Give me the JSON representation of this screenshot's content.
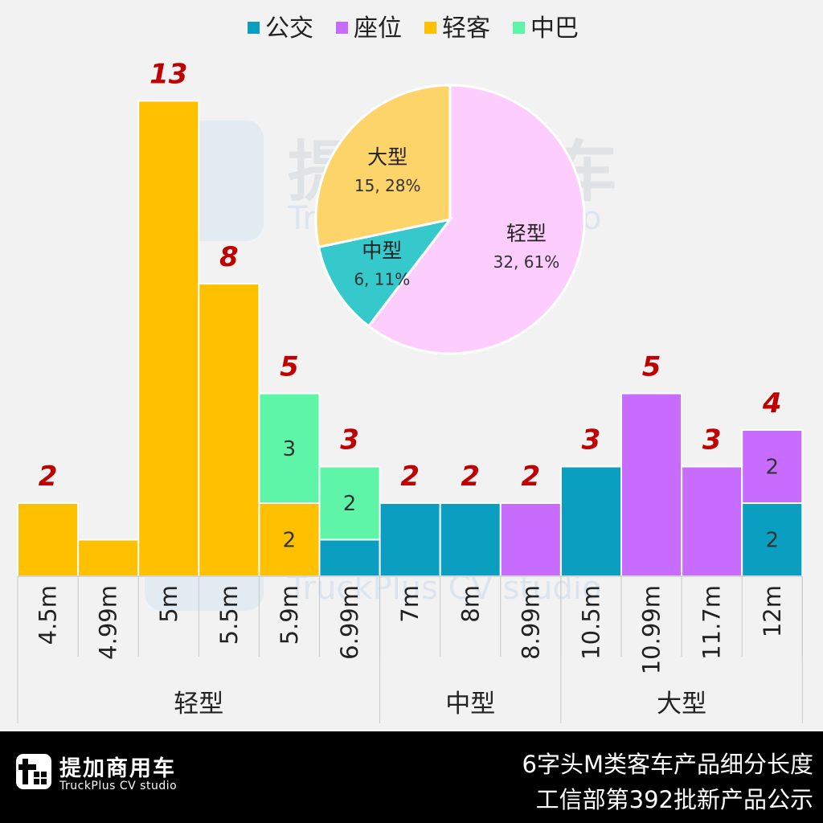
{
  "chart_data": [
    {
      "type": "bar",
      "stacked": true,
      "categories": [
        "4.5m",
        "4.99m",
        "5m",
        "5.5m",
        "5.9m",
        "6.99m",
        "7m",
        "8m",
        "8.99m",
        "10.5m",
        "10.99m",
        "11.7m",
        "12m"
      ],
      "groups": [
        {
          "label": "轻型",
          "categories": [
            "4.5m",
            "4.99m",
            "5m",
            "5.5m",
            "5.9m",
            "6.99m"
          ]
        },
        {
          "label": "中型",
          "categories": [
            "7m",
            "8m",
            "8.99m"
          ]
        },
        {
          "label": "大型",
          "categories": [
            "10.5m",
            "10.99m",
            "11.7m",
            "12m"
          ]
        }
      ],
      "series": [
        {
          "name": "公交",
          "color": "#0a9fc0",
          "values": [
            0,
            0,
            0,
            0,
            0,
            1,
            2,
            2,
            0,
            3,
            0,
            0,
            2
          ]
        },
        {
          "name": "座位",
          "color": "#c86bff",
          "values": [
            0,
            0,
            0,
            0,
            0,
            0,
            0,
            0,
            2,
            0,
            5,
            3,
            2
          ]
        },
        {
          "name": "轻客",
          "color": "#ffc000",
          "values": [
            2,
            1,
            13,
            8,
            2,
            0,
            0,
            0,
            0,
            0,
            0,
            0,
            0
          ]
        },
        {
          "name": "中巴",
          "color": "#5ef5a8",
          "values": [
            0,
            0,
            0,
            0,
            3,
            2,
            0,
            0,
            0,
            0,
            0,
            0,
            0
          ]
        }
      ],
      "totals": [
        "2",
        "",
        "13",
        "8",
        "5",
        "3",
        "2",
        "2",
        "2",
        "3",
        "5",
        "3",
        "4"
      ],
      "segment_labels": [
        {
          "category": "5.9m",
          "series": "中巴",
          "text": "3"
        },
        {
          "category": "5.9m",
          "series": "轻客",
          "text": "2"
        },
        {
          "category": "6.99m",
          "series": "中巴",
          "text": "2"
        },
        {
          "category": "12m",
          "series": "座位",
          "text": "2"
        },
        {
          "category": "12m",
          "series": "公交",
          "text": "2"
        }
      ],
      "ylim": [
        0,
        14
      ],
      "grid": false,
      "legend": "top-center"
    },
    {
      "type": "pie",
      "slices": [
        {
          "label": "轻型",
          "value": 32,
          "text": "32, 61%",
          "color": "#fdcdfd"
        },
        {
          "label": "中型",
          "value": 6,
          "text": "6, 11%",
          "color": "#35c9cc"
        },
        {
          "label": "大型",
          "value": 15,
          "text": "15, 28%",
          "color": "#fdd46a"
        }
      ]
    }
  ],
  "watermark": {
    "name": "提加商用车",
    "subtitle": "TruckPlus CV studio"
  },
  "footer": {
    "brand_name": "提加商用车",
    "brand_sub": "TruckPlus CV studio",
    "title_line1": "6字头M类客车产品细分长度",
    "title_line2": "工信部第392批新产品公示"
  },
  "colors": {
    "background": "#f2f2f2",
    "total_label": "#c00000",
    "footer_bg": "#000000"
  }
}
